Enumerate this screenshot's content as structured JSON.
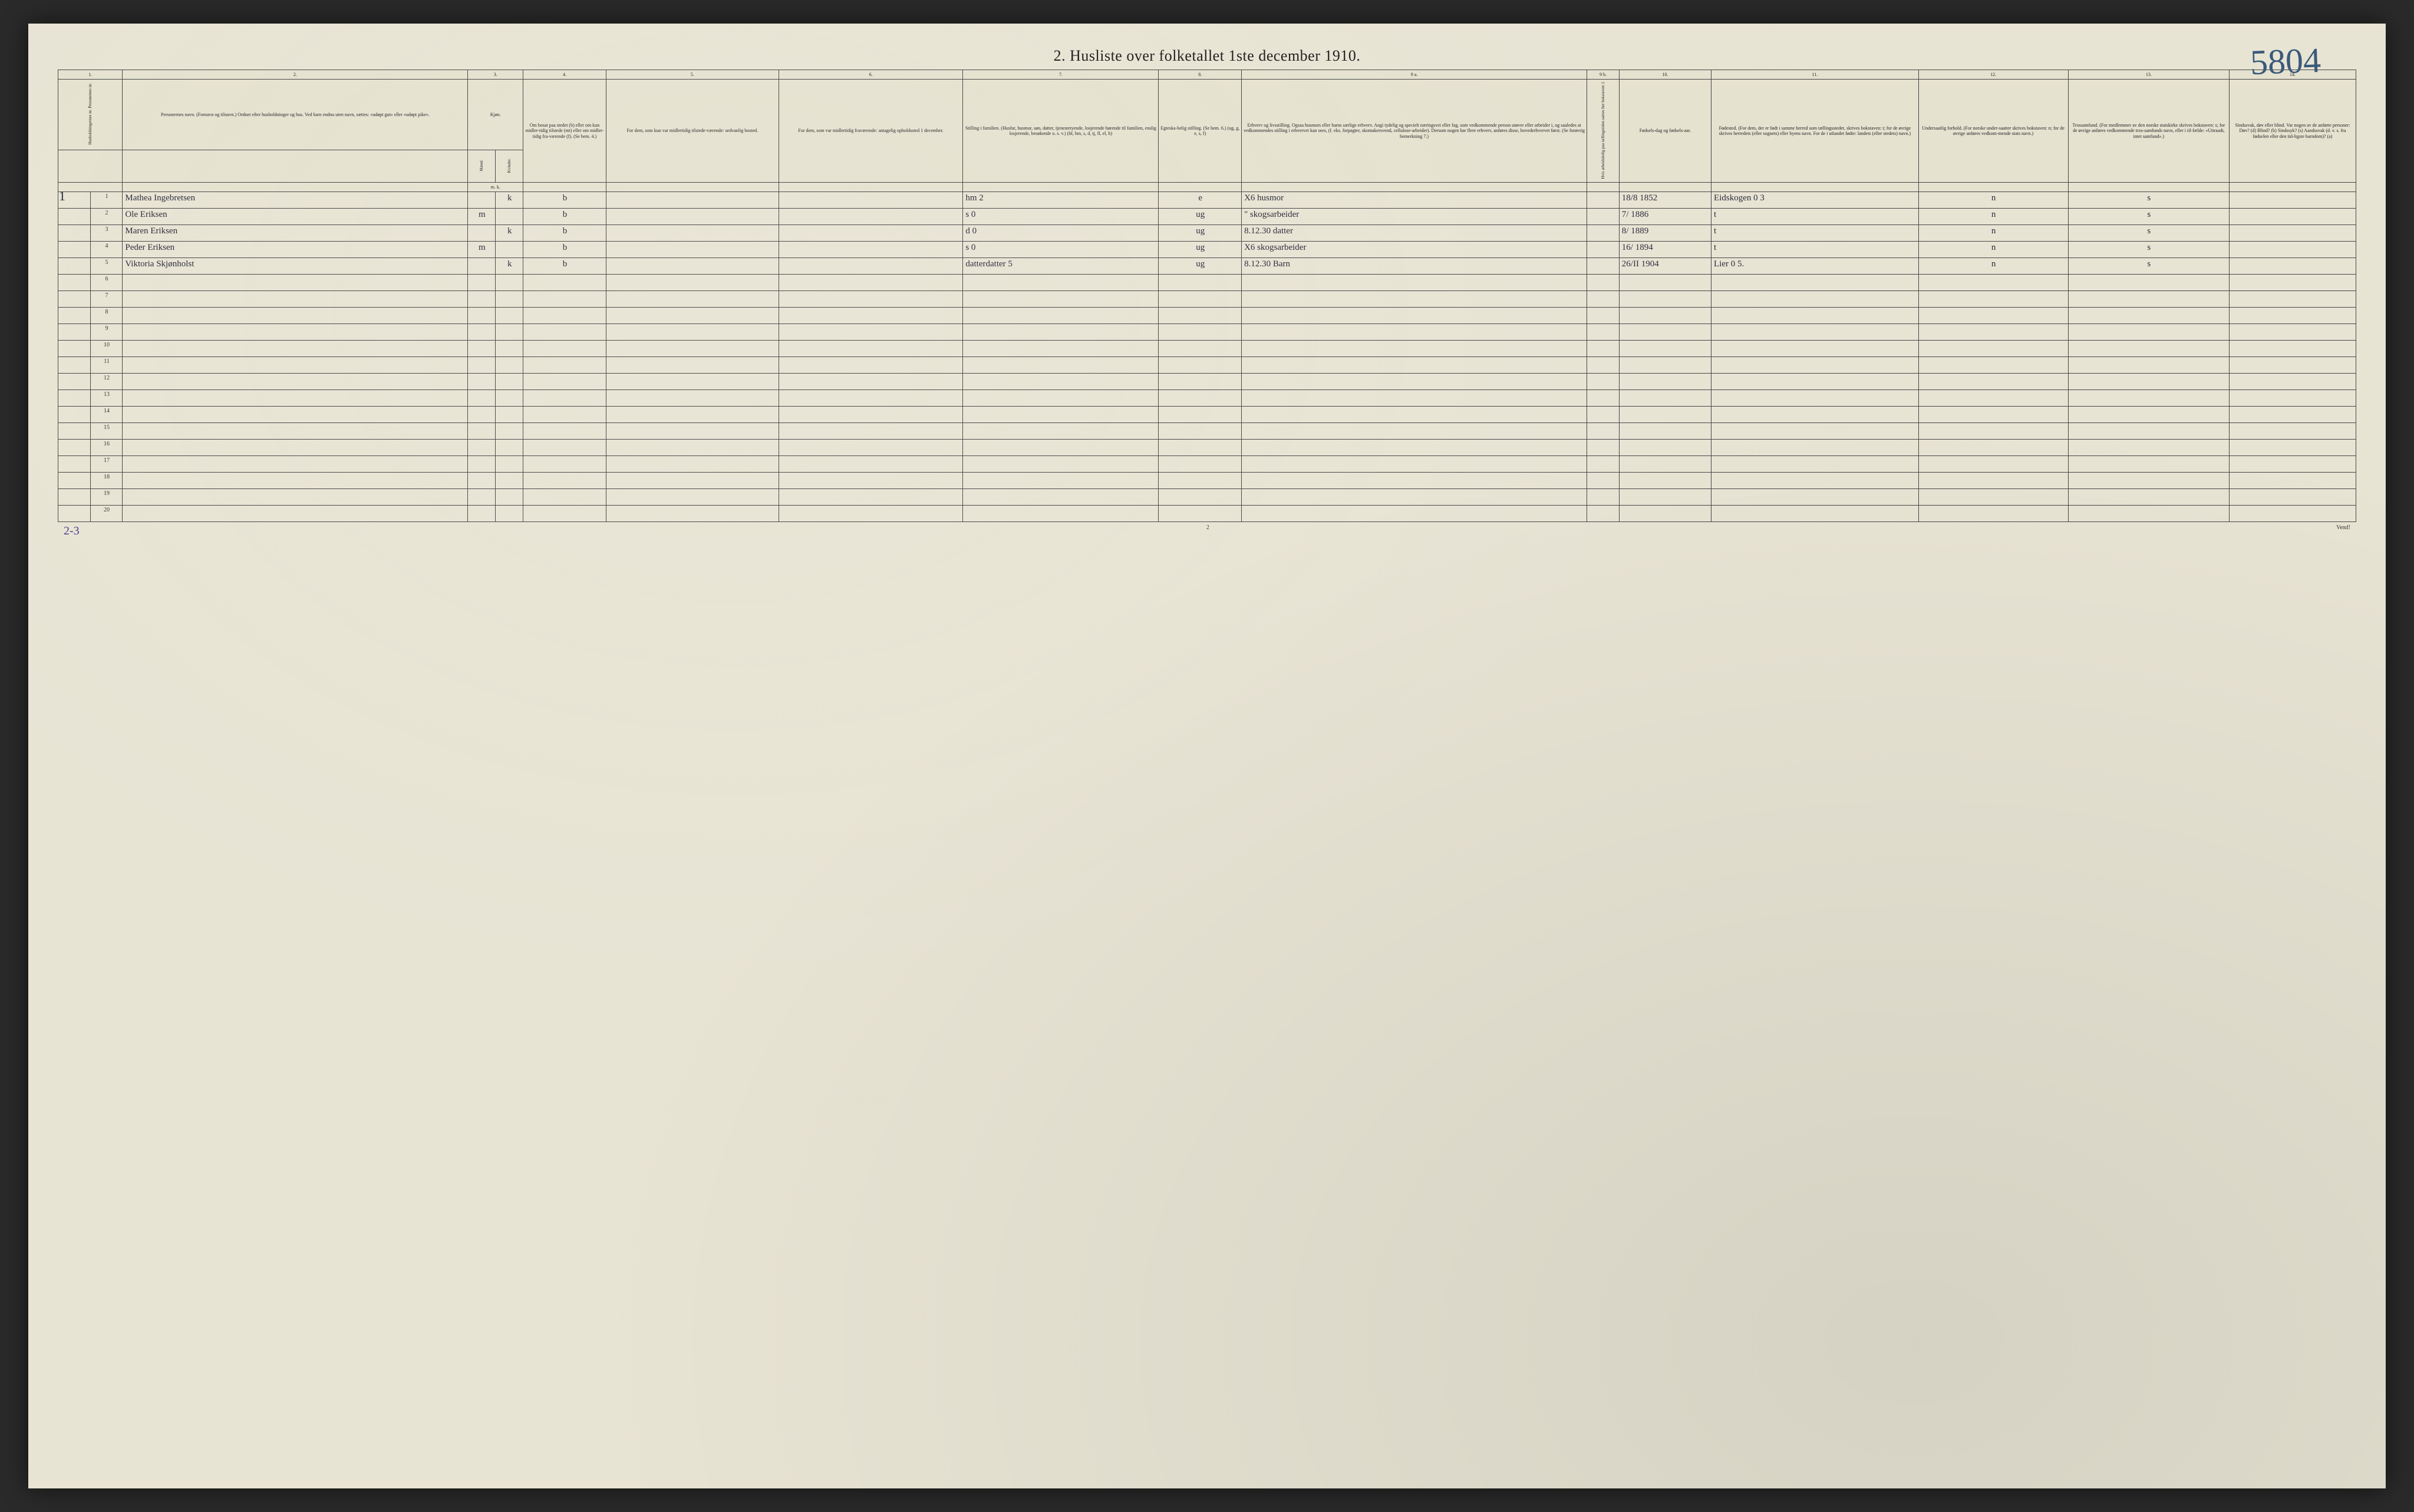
{
  "page": {
    "title": "2.  Husliste over folketallet 1ste december 1910.",
    "handwritten_corner_number": "5804",
    "household_tick": "1",
    "footer": {
      "left_note": "2-3",
      "center_note": "2",
      "right_note": "Vend!"
    },
    "background_color": "#e8e4d4",
    "border_color": "#444444",
    "handwriting_color": "#2a2a3a",
    "corner_number_color": "#3a5a7a"
  },
  "columns": {
    "numbers": [
      "1.",
      "2.",
      "3.",
      "4.",
      "5.",
      "6.",
      "7.",
      "8.",
      "9 a.",
      "9 b.",
      "10.",
      "11.",
      "12.",
      "13.",
      "14."
    ],
    "c1": "Husholdningernes nr.\nPersonernes nr.",
    "c2": "Personernes navn.\n(Fornavn og tilnavn.)\nOrdnet efter husholdninger og hus.\nVed barn endnu uten navn, sættes: «udøpt gut» eller «udøpt pike».",
    "c3": "Kjøn.",
    "c3m": "Mænd.",
    "c3k": "Kvinder.",
    "c3mk": "m.  k.",
    "c4": "Om bosat paa stedet (b) eller om kun midler-tidig tilstede (mt) eller om midler-tidig fra-værende (f). (Se bem. 4.)",
    "c5": "For dem, som kun var midlertidig tilstede-værende:\nsedvanlig bosted.",
    "c6": "For dem, som var midlertidig fraværende:\nantagelig opholdssted 1 december.",
    "c7": "Stilling i familien.\n(Husfar, husmor, søn, datter, tjenestetyende, losjerende hørende til familien, enslig losjerende, besøkende o. s. v.)\n(hf, hm, s, d, tj, fl, el, b)",
    "c8": "Egteska-belig stilling. (Se bem. 6.)\n(ug, g, e, s, f)",
    "c9a": "Erhverv og livsstilling.\nOgsaa husmors eller barns særlige erhverv. Angi tydelig og specielt næringsvei eller fag, som vedkommende person utøver eller arbeider i, og saaledes at vedkommendes stilling i erhvervet kan sees, (f. eks. forpagter, skomakersvend, cellulose-arbeider). Dersom nogen har flere erhverv, anføres disse, hovederhvervet først.\n(Se forøvrig bemerkning 7.)",
    "c9b": "Hvis arbeidsledig paa tællingstiden sættes her bokstaven: l.",
    "c10": "Fødsels-dag og fødsels-aar.",
    "c11": "Fødested.\n(For dem, der er født i samme herred som tællingsstedet, skrives bokstaven: t; for de øvrige skrives herredets (eller sognets) eller byens navn. For de i utlandet fødte: landets (eller stedets) navn.)",
    "c12": "Undersaatlig forhold.\n(For norske under-saatter skrives bokstaven: n; for de øvrige anføres vedkom-mende stats navn.)",
    "c13": "Trossamfund.\n(For medlemmer av den norske statskirke skrives bokstaven: s; for de øvrige anføres vedkommende tros-samfunds navn, eller i til-fælde: «Uttraadt, intet samfund».)",
    "c14": "Sindssvak, døv eller blind.\nVar nogen av de anførte personer:\nDøv?  (d)\nBlind?  (b)\nSindssyk?  (s)\nAandssvak (d. v. s. fra fødselen eller den tid-ligste barndom)?  (a)"
  },
  "widths": {
    "c1a": "1.4%",
    "c1b": "1.4%",
    "c2": "15%",
    "c3m": "1.2%",
    "c3k": "1.2%",
    "c4": "3.6%",
    "c5": "7.5%",
    "c6": "8%",
    "c7": "8.5%",
    "c8": "3.6%",
    "c9a": "15%",
    "c9b": "1.4%",
    "c10": "4%",
    "c11": "9%",
    "c12": "6.5%",
    "c13": "7%",
    "c14": "5.5%"
  },
  "rows": [
    {
      "n": "1",
      "name": "Mathea Ingebretsen",
      "m": "",
      "k": "k",
      "res": "b",
      "c5": "",
      "c6": "",
      "fam": "hm   2",
      "mar": "e",
      "occ": "X6    husmor",
      "c9b": "",
      "birth": "18/8 1852",
      "place": "Eidskogen  0 3",
      "nat": "n",
      "rel": "s",
      "c14": ""
    },
    {
      "n": "2",
      "name": "Ole Eriksen",
      "m": "m",
      "k": "",
      "res": "b",
      "c5": "",
      "c6": "",
      "fam": "s   0",
      "mar": "ug",
      "occ": "\"  skogsarbeider",
      "c9b": "",
      "birth": "7/ 1886",
      "place": "t",
      "nat": "n",
      "rel": "s",
      "c14": ""
    },
    {
      "n": "3",
      "name": "Maren Eriksen",
      "m": "",
      "k": "k",
      "res": "b",
      "c5": "",
      "c6": "",
      "fam": "d   0",
      "mar": "ug",
      "occ": "8.12.30 datter",
      "c9b": "",
      "birth": "8/ 1889",
      "place": "t",
      "nat": "n",
      "rel": "s",
      "c14": ""
    },
    {
      "n": "4",
      "name": "Peder Eriksen",
      "m": "m",
      "k": "",
      "res": "b",
      "c5": "",
      "c6": "",
      "fam": "s   0",
      "mar": "ug",
      "occ": "X6 skogsarbeider",
      "c9b": "",
      "birth": "16/ 1894",
      "place": "t",
      "nat": "n",
      "rel": "s",
      "c14": ""
    },
    {
      "n": "5",
      "name": "Viktoria Skjønholst",
      "m": "",
      "k": "k",
      "res": "b",
      "c5": "",
      "c6": "",
      "fam": "datterdatter 5",
      "mar": "ug",
      "occ": "8.12.30 Barn",
      "c9b": "",
      "birth": "26/II 1904",
      "place": "Lier   0 5.",
      "nat": "n",
      "rel": "s",
      "c14": ""
    },
    {
      "n": "6"
    },
    {
      "n": "7"
    },
    {
      "n": "8"
    },
    {
      "n": "9"
    },
    {
      "n": "10"
    },
    {
      "n": "11"
    },
    {
      "n": "12"
    },
    {
      "n": "13"
    },
    {
      "n": "14"
    },
    {
      "n": "15"
    },
    {
      "n": "16"
    },
    {
      "n": "17"
    },
    {
      "n": "18"
    },
    {
      "n": "19"
    },
    {
      "n": "20"
    }
  ]
}
